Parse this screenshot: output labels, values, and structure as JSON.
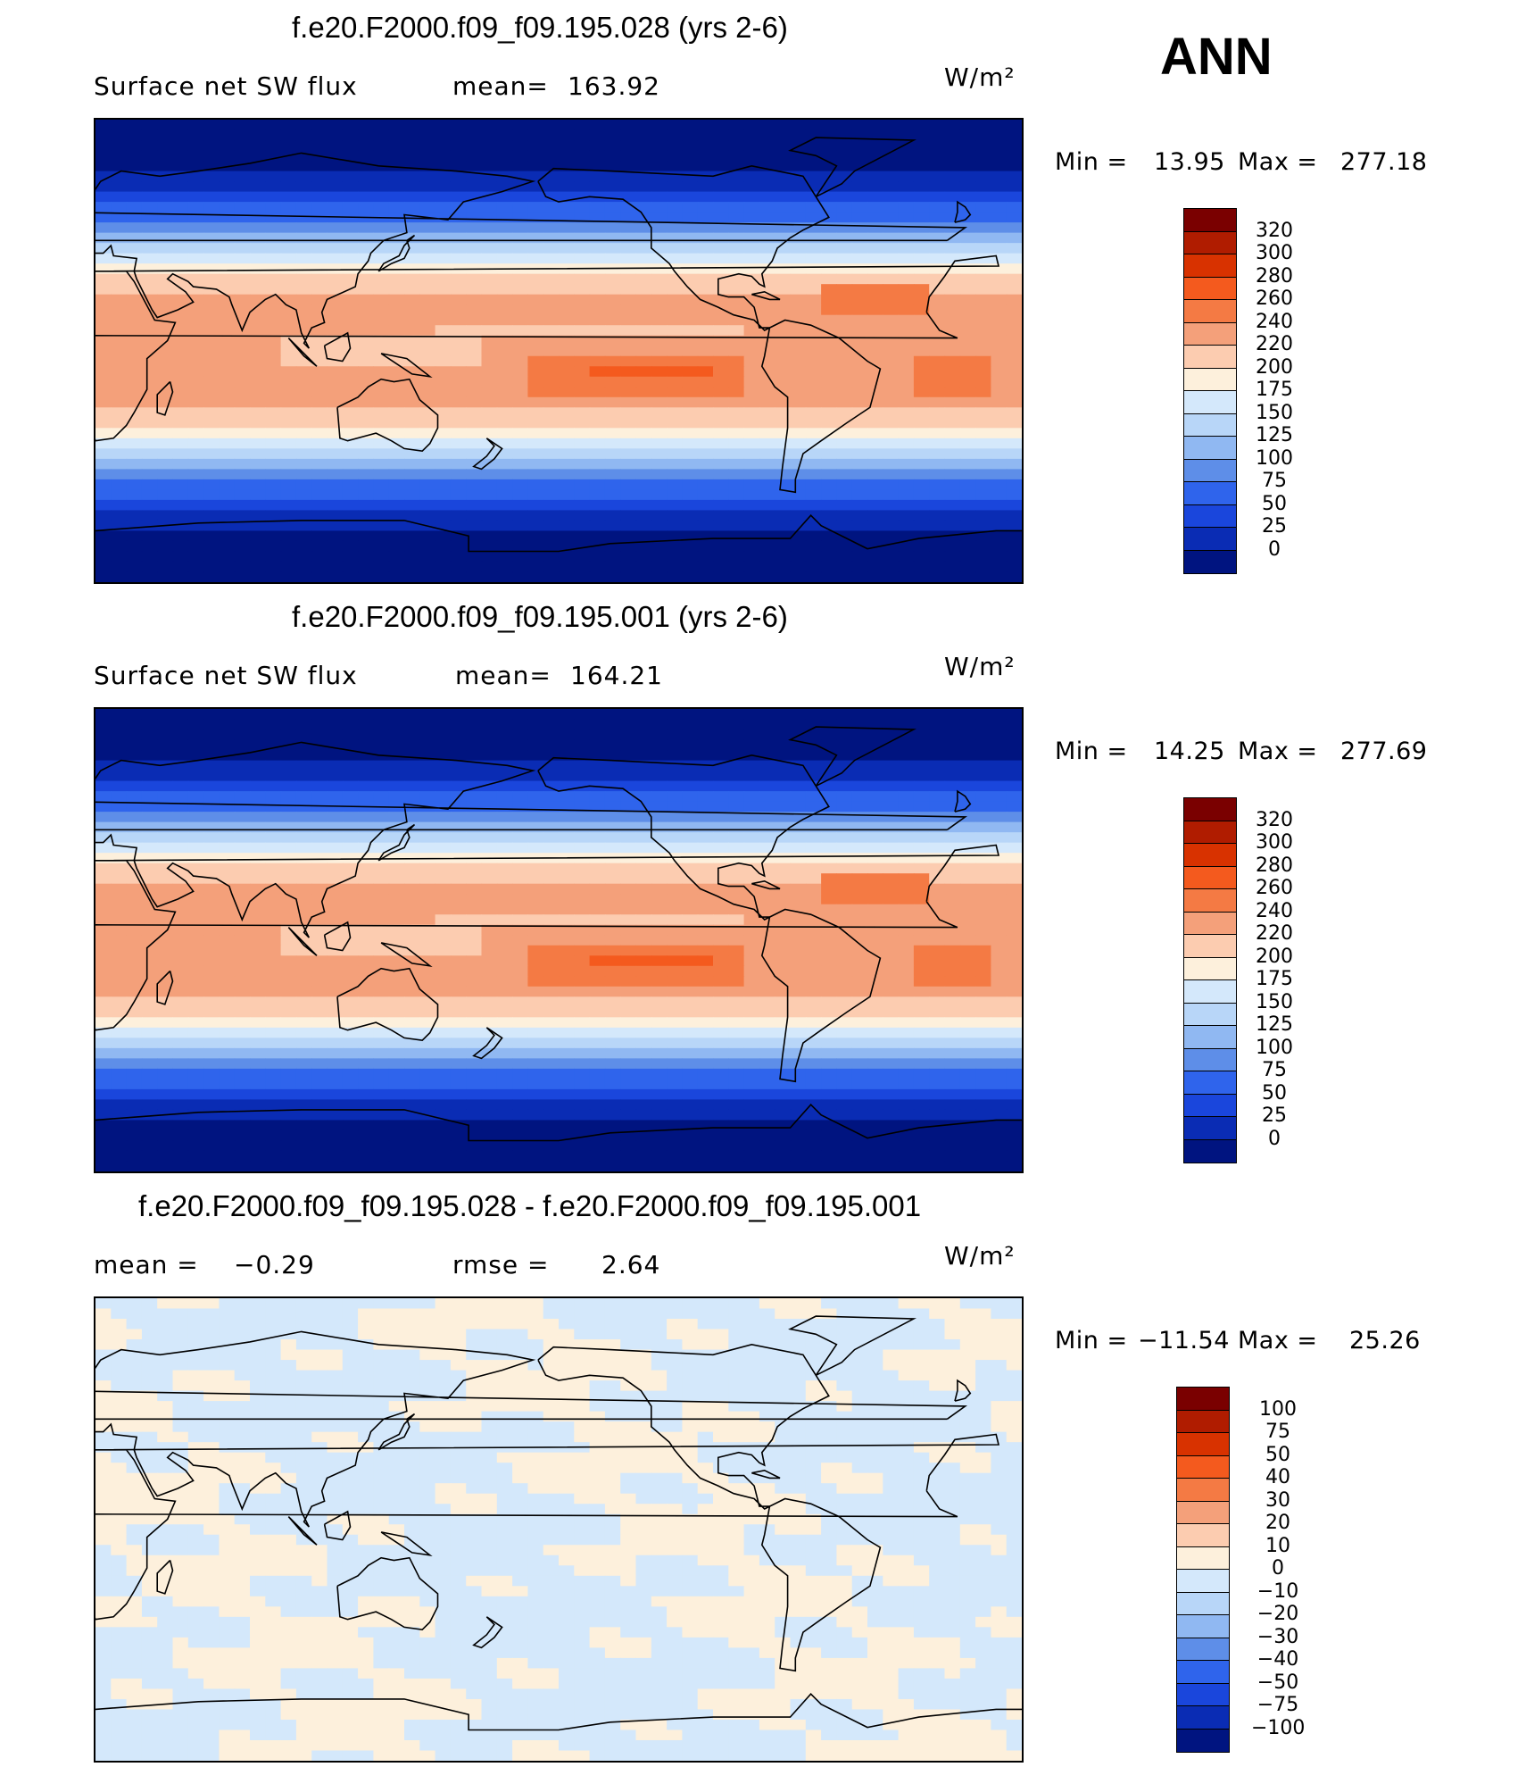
{
  "season": "ANN",
  "units": "W/m²",
  "chart_data": [
    {
      "type": "heatmap",
      "title": "f.e20.F2000.f09_f09.195.028 (yrs 2-6)",
      "variable": "Surface net SW flux",
      "mean_label": "mean=",
      "mean_value": "163.92",
      "units": "W/m²",
      "min_label": "Min =",
      "min": "13.95",
      "max_label": "Max =",
      "max": "277.18",
      "levels": [
        "320",
        "300",
        "280",
        "260",
        "240",
        "220",
        "200",
        "175",
        "150",
        "125",
        "100",
        "75",
        "50",
        "25",
        "0"
      ],
      "colors": [
        "#7a0000",
        "#b01c00",
        "#d83200",
        "#f45a1e",
        "#f47a44",
        "#f4a07a",
        "#fcccb0",
        "#fdf0dc",
        "#d4e8fb",
        "#b8d6f8",
        "#90b8f2",
        "#5e8ee8",
        "#2f64ec",
        "#1a46dc",
        "#0a2cb4",
        "#001480"
      ],
      "field_pattern": "full"
    },
    {
      "type": "heatmap",
      "title": "f.e20.F2000.f09_f09.195.001 (yrs 2-6)",
      "variable": "Surface net SW flux",
      "mean_label": "mean=",
      "mean_value": "164.21",
      "units": "W/m²",
      "min_label": "Min =",
      "min": "14.25",
      "max_label": "Max =",
      "max": "277.69",
      "levels": [
        "320",
        "300",
        "280",
        "260",
        "240",
        "220",
        "200",
        "175",
        "150",
        "125",
        "100",
        "75",
        "50",
        "25",
        "0"
      ],
      "colors": [
        "#7a0000",
        "#b01c00",
        "#d83200",
        "#f45a1e",
        "#f47a44",
        "#f4a07a",
        "#fcccb0",
        "#fdf0dc",
        "#d4e8fb",
        "#b8d6f8",
        "#90b8f2",
        "#5e8ee8",
        "#2f64ec",
        "#1a46dc",
        "#0a2cb4",
        "#001480"
      ],
      "field_pattern": "full"
    },
    {
      "type": "heatmap",
      "title": "f.e20.F2000.f09_f09.195.028 - f.e20.F2000.f09_f09.195.001",
      "mean_label": "mean =",
      "mean_value": "−0.29",
      "rmse_label": "rmse =",
      "rmse_value": "2.64",
      "units": "W/m²",
      "min_label": "Min =",
      "min": "−11.54",
      "max_label": "Max =",
      "max": "25.26",
      "levels": [
        "100",
        "75",
        "50",
        "40",
        "30",
        "20",
        "10",
        "0",
        "−10",
        "−20",
        "−30",
        "−40",
        "−50",
        "−75",
        "−100"
      ],
      "colors": [
        "#7a0000",
        "#b01c00",
        "#d83200",
        "#f45a1e",
        "#f47a44",
        "#f4a07a",
        "#fcccb0",
        "#fdf0dc",
        "#d4e8fb",
        "#b8d6f8",
        "#90b8f2",
        "#5e8ee8",
        "#2f64ec",
        "#1a46dc",
        "#0a2cb4",
        "#001480"
      ],
      "field_pattern": "diff"
    }
  ]
}
